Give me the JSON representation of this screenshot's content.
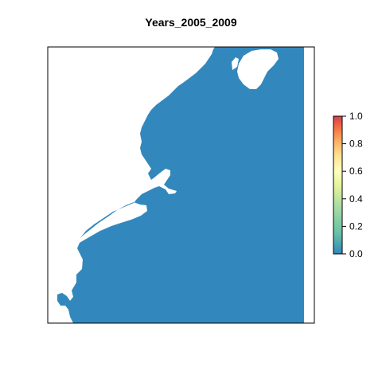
{
  "map": {
    "title": "Years_2005_2009",
    "ocean_color": "#3288bd",
    "land_color": "#ffffff"
  },
  "legend": {
    "min": 0.0,
    "max": 1.0,
    "ticks": [
      "0.0",
      "0.2",
      "0.4",
      "0.6",
      "0.8",
      "1.0"
    ],
    "palette": [
      "#3288bd",
      "#66c2a5",
      "#abdda4",
      "#e6f598",
      "#ffffbf",
      "#fee08b",
      "#fdae61",
      "#f46d43",
      "#d53e4f"
    ]
  }
}
